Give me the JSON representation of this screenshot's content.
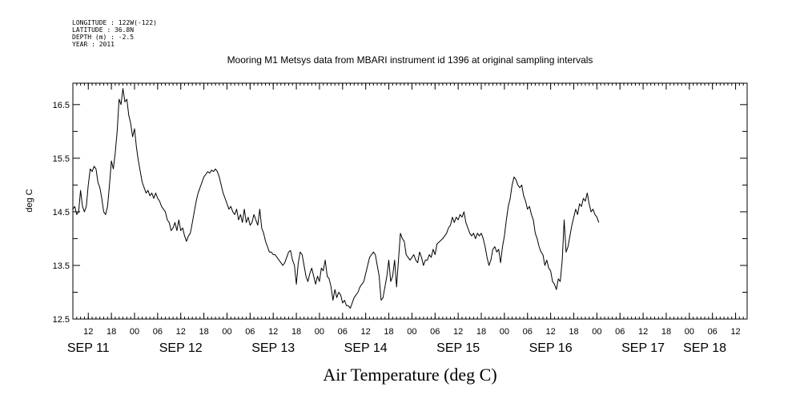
{
  "header": {
    "longitude": "LONGITUDE : 122W(-122)",
    "latitude": "LATITUDE : 36.8N",
    "depth": "DEPTH (m) : -2.5",
    "year": "YEAR : 2011"
  },
  "chart_data": {
    "type": "line",
    "title": "Mooring M1 Metsys data from MBARI instrument id 1396 at original sampling intervals",
    "xlabel": "Air Temperature (deg C)",
    "ylabel": "deg C",
    "ylim": [
      12.5,
      16.9
    ],
    "yticks": [
      12.5,
      13.5,
      14.5,
      15.5,
      16.5
    ],
    "ytick_labels": [
      "12.5",
      "13.5",
      "14.5",
      "15.5",
      "16.5"
    ],
    "x_units": "hours since SEP 11 00:00",
    "xlim": [
      8,
      183
    ],
    "hour_ticks": [
      {
        "x": 12,
        "label": "12"
      },
      {
        "x": 18,
        "label": "18"
      },
      {
        "x": 24,
        "label": "00"
      },
      {
        "x": 30,
        "label": "06"
      },
      {
        "x": 36,
        "label": "12"
      },
      {
        "x": 42,
        "label": "18"
      },
      {
        "x": 48,
        "label": "00"
      },
      {
        "x": 54,
        "label": "06"
      },
      {
        "x": 60,
        "label": "12"
      },
      {
        "x": 66,
        "label": "18"
      },
      {
        "x": 72,
        "label": "00"
      },
      {
        "x": 78,
        "label": "06"
      },
      {
        "x": 84,
        "label": "12"
      },
      {
        "x": 90,
        "label": "18"
      },
      {
        "x": 96,
        "label": "00"
      },
      {
        "x": 102,
        "label": "06"
      },
      {
        "x": 108,
        "label": "12"
      },
      {
        "x": 114,
        "label": "18"
      },
      {
        "x": 120,
        "label": "00"
      },
      {
        "x": 126,
        "label": "06"
      },
      {
        "x": 132,
        "label": "12"
      },
      {
        "x": 138,
        "label": "18"
      },
      {
        "x": 144,
        "label": "00"
      },
      {
        "x": 150,
        "label": "06"
      },
      {
        "x": 156,
        "label": "12"
      },
      {
        "x": 162,
        "label": "18"
      },
      {
        "x": 168,
        "label": "00"
      },
      {
        "x": 174,
        "label": "06"
      },
      {
        "x": 180,
        "label": "12"
      }
    ],
    "day_labels": [
      {
        "x": 12,
        "label": "SEP 11"
      },
      {
        "x": 36,
        "label": "SEP 12"
      },
      {
        "x": 60,
        "label": "SEP 13"
      },
      {
        "x": 84,
        "label": "SEP 14"
      },
      {
        "x": 108,
        "label": "SEP 15"
      },
      {
        "x": 132,
        "label": "SEP 16"
      },
      {
        "x": 156,
        "label": "SEP 17"
      },
      {
        "x": 172,
        "label": "SEP 18"
      }
    ],
    "series": [
      {
        "color": "#000000",
        "points": [
          [
            8.0,
            14.55
          ],
          [
            8.5,
            14.6
          ],
          [
            9.0,
            14.45
          ],
          [
            9.5,
            14.5
          ],
          [
            10.0,
            14.9
          ],
          [
            10.5,
            14.6
          ],
          [
            11.0,
            14.5
          ],
          [
            11.5,
            14.6
          ],
          [
            12.0,
            15.0
          ],
          [
            12.5,
            15.3
          ],
          [
            13.0,
            15.25
          ],
          [
            13.5,
            15.35
          ],
          [
            14.0,
            15.3
          ],
          [
            14.5,
            15.05
          ],
          [
            15.0,
            14.95
          ],
          [
            15.5,
            14.75
          ],
          [
            16.0,
            14.5
          ],
          [
            16.5,
            14.45
          ],
          [
            17.0,
            14.6
          ],
          [
            17.5,
            15.0
          ],
          [
            18.0,
            15.45
          ],
          [
            18.5,
            15.3
          ],
          [
            19.0,
            15.6
          ],
          [
            19.5,
            16.0
          ],
          [
            20.0,
            16.6
          ],
          [
            20.5,
            16.5
          ],
          [
            21.0,
            16.8
          ],
          [
            21.5,
            16.55
          ],
          [
            22.0,
            16.6
          ],
          [
            22.5,
            16.3
          ],
          [
            23.0,
            16.15
          ],
          [
            23.5,
            15.9
          ],
          [
            24.0,
            16.05
          ],
          [
            24.5,
            15.7
          ],
          [
            25.0,
            15.45
          ],
          [
            25.5,
            15.25
          ],
          [
            26.0,
            15.05
          ],
          [
            26.5,
            14.95
          ],
          [
            27.0,
            14.85
          ],
          [
            27.5,
            14.9
          ],
          [
            28.0,
            14.8
          ],
          [
            28.5,
            14.85
          ],
          [
            29.0,
            14.75
          ],
          [
            29.5,
            14.85
          ],
          [
            30.0,
            14.75
          ],
          [
            30.5,
            14.7
          ],
          [
            31.0,
            14.6
          ],
          [
            31.5,
            14.55
          ],
          [
            32.0,
            14.5
          ],
          [
            32.5,
            14.35
          ],
          [
            33.0,
            14.3
          ],
          [
            33.5,
            14.15
          ],
          [
            34.0,
            14.2
          ],
          [
            34.5,
            14.3
          ],
          [
            35.0,
            14.15
          ],
          [
            35.5,
            14.35
          ],
          [
            36.0,
            14.15
          ],
          [
            36.5,
            14.2
          ],
          [
            37.0,
            14.05
          ],
          [
            37.5,
            13.95
          ],
          [
            38.0,
            14.05
          ],
          [
            38.5,
            14.1
          ],
          [
            39.0,
            14.3
          ],
          [
            39.5,
            14.5
          ],
          [
            40.0,
            14.7
          ],
          [
            40.5,
            14.85
          ],
          [
            41.0,
            14.95
          ],
          [
            41.5,
            15.05
          ],
          [
            42.0,
            15.15
          ],
          [
            42.5,
            15.2
          ],
          [
            43.0,
            15.25
          ],
          [
            43.5,
            15.22
          ],
          [
            44.0,
            15.28
          ],
          [
            44.5,
            15.25
          ],
          [
            45.0,
            15.3
          ],
          [
            45.5,
            15.25
          ],
          [
            46.0,
            15.15
          ],
          [
            46.5,
            15.0
          ],
          [
            47.0,
            14.85
          ],
          [
            47.5,
            14.75
          ],
          [
            48.0,
            14.65
          ],
          [
            48.5,
            14.55
          ],
          [
            49.0,
            14.6
          ],
          [
            49.5,
            14.5
          ],
          [
            50.0,
            14.45
          ],
          [
            50.5,
            14.55
          ],
          [
            51.0,
            14.35
          ],
          [
            51.5,
            14.45
          ],
          [
            52.0,
            14.3
          ],
          [
            52.5,
            14.55
          ],
          [
            53.0,
            14.3
          ],
          [
            53.5,
            14.4
          ],
          [
            54.0,
            14.25
          ],
          [
            54.5,
            14.3
          ],
          [
            55.0,
            14.45
          ],
          [
            55.5,
            14.35
          ],
          [
            56.0,
            14.25
          ],
          [
            56.5,
            14.55
          ],
          [
            57.0,
            14.2
          ],
          [
            57.5,
            14.1
          ],
          [
            58.0,
            13.95
          ],
          [
            58.5,
            13.85
          ],
          [
            59.0,
            13.75
          ],
          [
            59.5,
            13.75
          ],
          [
            60.0,
            13.7
          ],
          [
            60.5,
            13.7
          ],
          [
            61.0,
            13.65
          ],
          [
            61.5,
            13.6
          ],
          [
            62.0,
            13.55
          ],
          [
            62.5,
            13.5
          ],
          [
            63.0,
            13.55
          ],
          [
            63.5,
            13.65
          ],
          [
            64.0,
            13.75
          ],
          [
            64.5,
            13.78
          ],
          [
            65.0,
            13.6
          ],
          [
            65.5,
            13.5
          ],
          [
            66.0,
            13.15
          ],
          [
            66.5,
            13.55
          ],
          [
            67.0,
            13.75
          ],
          [
            67.5,
            13.7
          ],
          [
            68.0,
            13.5
          ],
          [
            68.5,
            13.3
          ],
          [
            69.0,
            13.2
          ],
          [
            69.5,
            13.35
          ],
          [
            70.0,
            13.45
          ],
          [
            70.5,
            13.3
          ],
          [
            71.0,
            13.15
          ],
          [
            71.5,
            13.3
          ],
          [
            72.0,
            13.2
          ],
          [
            72.5,
            13.45
          ],
          [
            73.0,
            13.4
          ],
          [
            73.5,
            13.6
          ],
          [
            74.0,
            13.3
          ],
          [
            74.5,
            13.25
          ],
          [
            75.0,
            13.1
          ],
          [
            75.5,
            12.85
          ],
          [
            76.0,
            13.05
          ],
          [
            76.5,
            12.9
          ],
          [
            77.0,
            13.0
          ],
          [
            77.5,
            12.95
          ],
          [
            78.0,
            12.8
          ],
          [
            78.5,
            12.85
          ],
          [
            79.0,
            12.75
          ],
          [
            79.5,
            12.75
          ],
          [
            80.0,
            12.7
          ],
          [
            80.5,
            12.8
          ],
          [
            81.0,
            12.9
          ],
          [
            81.5,
            12.95
          ],
          [
            82.0,
            13.0
          ],
          [
            82.5,
            13.1
          ],
          [
            83.0,
            13.15
          ],
          [
            83.5,
            13.2
          ],
          [
            84.0,
            13.35
          ],
          [
            84.5,
            13.5
          ],
          [
            85.0,
            13.65
          ],
          [
            85.5,
            13.7
          ],
          [
            86.0,
            13.75
          ],
          [
            86.5,
            13.7
          ],
          [
            87.0,
            13.5
          ],
          [
            87.5,
            13.3
          ],
          [
            88.0,
            12.85
          ],
          [
            88.5,
            12.9
          ],
          [
            89.0,
            13.1
          ],
          [
            89.5,
            13.3
          ],
          [
            90.0,
            13.6
          ],
          [
            90.5,
            13.2
          ],
          [
            91.0,
            13.3
          ],
          [
            91.5,
            13.6
          ],
          [
            92.0,
            13.1
          ],
          [
            92.5,
            13.6
          ],
          [
            93.0,
            14.1
          ],
          [
            93.5,
            14.0
          ],
          [
            94.0,
            13.95
          ],
          [
            94.5,
            13.7
          ],
          [
            95.0,
            13.65
          ],
          [
            95.5,
            13.6
          ],
          [
            96.0,
            13.65
          ],
          [
            96.5,
            13.7
          ],
          [
            97.0,
            13.6
          ],
          [
            97.5,
            13.55
          ],
          [
            98.0,
            13.75
          ],
          [
            98.5,
            13.65
          ],
          [
            99.0,
            13.5
          ],
          [
            99.5,
            13.6
          ],
          [
            100.0,
            13.6
          ],
          [
            100.5,
            13.7
          ],
          [
            101.0,
            13.65
          ],
          [
            101.5,
            13.8
          ],
          [
            102.0,
            13.7
          ],
          [
            102.5,
            13.9
          ],
          [
            104.0,
            14.0
          ],
          [
            105.0,
            14.1
          ],
          [
            105.5,
            14.2
          ],
          [
            106.0,
            14.25
          ],
          [
            106.5,
            14.4
          ],
          [
            107.0,
            14.3
          ],
          [
            107.5,
            14.4
          ],
          [
            108.0,
            14.35
          ],
          [
            108.5,
            14.45
          ],
          [
            109.0,
            14.4
          ],
          [
            109.5,
            14.5
          ],
          [
            110.0,
            14.3
          ],
          [
            110.5,
            14.2
          ],
          [
            111.0,
            14.1
          ],
          [
            111.5,
            14.05
          ],
          [
            112.0,
            14.1
          ],
          [
            112.5,
            14.0
          ],
          [
            113.0,
            14.1
          ],
          [
            113.5,
            14.05
          ],
          [
            114.0,
            14.1
          ],
          [
            114.5,
            14.0
          ],
          [
            115.0,
            13.85
          ],
          [
            115.5,
            13.65
          ],
          [
            116.0,
            13.5
          ],
          [
            116.5,
            13.6
          ],
          [
            117.0,
            13.8
          ],
          [
            117.5,
            13.85
          ],
          [
            118.0,
            13.75
          ],
          [
            118.5,
            13.8
          ],
          [
            119.0,
            13.55
          ],
          [
            119.5,
            13.85
          ],
          [
            120.0,
            14.05
          ],
          [
            120.5,
            14.35
          ],
          [
            121.0,
            14.6
          ],
          [
            121.5,
            14.75
          ],
          [
            122.0,
            15.0
          ],
          [
            122.5,
            15.15
          ],
          [
            123.0,
            15.1
          ],
          [
            123.5,
            15.0
          ],
          [
            124.0,
            14.95
          ],
          [
            124.5,
            15.0
          ],
          [
            125.0,
            14.8
          ],
          [
            125.5,
            14.7
          ],
          [
            126.0,
            14.55
          ],
          [
            126.5,
            14.6
          ],
          [
            127.0,
            14.45
          ],
          [
            127.5,
            14.35
          ],
          [
            128.0,
            14.1
          ],
          [
            128.5,
            14.0
          ],
          [
            129.0,
            13.85
          ],
          [
            129.5,
            13.75
          ],
          [
            130.0,
            13.7
          ],
          [
            130.5,
            13.5
          ],
          [
            131.0,
            13.6
          ],
          [
            131.5,
            13.45
          ],
          [
            132.0,
            13.4
          ],
          [
            132.5,
            13.2
          ],
          [
            133.0,
            13.15
          ],
          [
            133.5,
            13.05
          ],
          [
            134.0,
            13.25
          ],
          [
            134.5,
            13.2
          ],
          [
            135.0,
            13.6
          ],
          [
            135.5,
            14.35
          ],
          [
            136.0,
            13.75
          ],
          [
            136.5,
            13.85
          ],
          [
            137.0,
            14.05
          ],
          [
            137.5,
            14.25
          ],
          [
            138.0,
            14.4
          ],
          [
            138.5,
            14.55
          ],
          [
            139.0,
            14.45
          ],
          [
            139.5,
            14.65
          ],
          [
            140.0,
            14.6
          ],
          [
            140.5,
            14.75
          ],
          [
            141.0,
            14.7
          ],
          [
            141.5,
            14.85
          ],
          [
            142.0,
            14.65
          ],
          [
            142.5,
            14.5
          ],
          [
            143.0,
            14.55
          ],
          [
            143.5,
            14.45
          ],
          [
            144.0,
            14.4
          ],
          [
            144.5,
            14.3
          ]
        ]
      }
    ]
  }
}
